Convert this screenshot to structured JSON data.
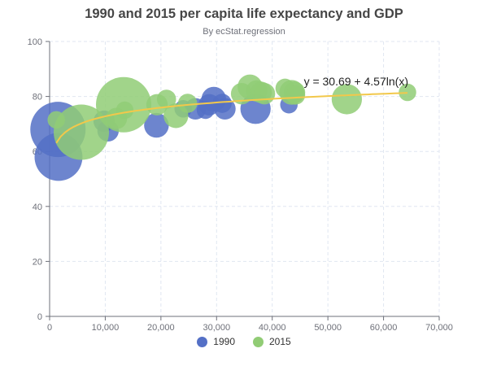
{
  "chart_data": {
    "type": "scatter",
    "title": "1990 and 2015 per capita life expectancy and GDP",
    "subtitle": "By ecStat.regression",
    "xlim": [
      0,
      70000
    ],
    "ylim": [
      0,
      100
    ],
    "x_ticks": [
      "0",
      "10,000",
      "20,000",
      "30,000",
      "40,000",
      "50,000",
      "60,000",
      "70,000"
    ],
    "y_ticks": [
      "0",
      "20",
      "40",
      "60",
      "80",
      "100"
    ],
    "grid": true,
    "legend_position": "bottom",
    "regression": {
      "equation": "y = 30.69 + 4.57ln(x)",
      "intercept": 30.69,
      "coef": 4.57,
      "color": "#f2c84b"
    },
    "series": [
      {
        "name": "1990",
        "color": "#5470c6",
        "points": [
          {
            "x": 1500,
            "y": 68,
            "size": 1.0
          },
          {
            "x": 1600,
            "y": 58,
            "size": 0.75
          },
          {
            "x": 9800,
            "y": 71,
            "size": 0.15
          },
          {
            "x": 10500,
            "y": 67.5,
            "size": 0.15
          },
          {
            "x": 19200,
            "y": 69.5,
            "size": 0.2
          },
          {
            "x": 24000,
            "y": 75.5,
            "size": 0.1
          },
          {
            "x": 26200,
            "y": 75.5,
            "size": 0.15
          },
          {
            "x": 28000,
            "y": 75,
            "size": 0.1
          },
          {
            "x": 28700,
            "y": 77,
            "size": 0.15
          },
          {
            "x": 29500,
            "y": 79,
            "size": 0.2
          },
          {
            "x": 31000,
            "y": 77.5,
            "size": 0.12
          },
          {
            "x": 31500,
            "y": 75.5,
            "size": 0.15
          },
          {
            "x": 37000,
            "y": 75.5,
            "size": 0.3
          },
          {
            "x": 43000,
            "y": 77,
            "size": 0.1
          }
        ]
      },
      {
        "name": "2015",
        "color": "#91cc75",
        "points": [
          {
            "x": 13300,
            "y": 77,
            "size": 1.0
          },
          {
            "x": 5700,
            "y": 67,
            "size": 1.0
          },
          {
            "x": 1200,
            "y": 71.5,
            "size": 0.1
          },
          {
            "x": 12000,
            "y": 72,
            "size": 0.15
          },
          {
            "x": 13500,
            "y": 75,
            "size": 0.1
          },
          {
            "x": 19300,
            "y": 77,
            "size": 0.15
          },
          {
            "x": 21000,
            "y": 79,
            "size": 0.12
          },
          {
            "x": 22700,
            "y": 73,
            "size": 0.2
          },
          {
            "x": 24800,
            "y": 77.5,
            "size": 0.12
          },
          {
            "x": 34500,
            "y": 81,
            "size": 0.15
          },
          {
            "x": 36000,
            "y": 83.5,
            "size": 0.2
          },
          {
            "x": 37200,
            "y": 82,
            "size": 0.15
          },
          {
            "x": 38000,
            "y": 81.5,
            "size": 0.15
          },
          {
            "x": 38600,
            "y": 81,
            "size": 0.15
          },
          {
            "x": 42300,
            "y": 83,
            "size": 0.12
          },
          {
            "x": 43500,
            "y": 81.5,
            "size": 0.2
          },
          {
            "x": 44000,
            "y": 81.5,
            "size": 0.15
          },
          {
            "x": 44200,
            "y": 80.5,
            "size": 0.12
          },
          {
            "x": 53400,
            "y": 79,
            "size": 0.3
          },
          {
            "x": 64300,
            "y": 81.5,
            "size": 0.1
          }
        ]
      }
    ]
  }
}
